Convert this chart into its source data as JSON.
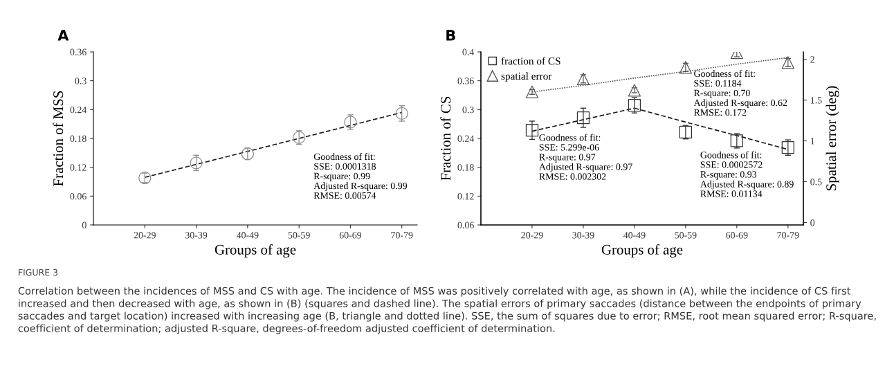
{
  "chart_data": [
    {
      "type": "scatter",
      "title": "A",
      "xlabel": "Groups of age",
      "ylabel": "Fraction of MSS",
      "categories": [
        "20-29",
        "30-39",
        "40-49",
        "50-59",
        "60-69",
        "70-79"
      ],
      "series": [
        {
          "color": "#8c8c8c",
          "marker": "circle",
          "values": [
            0.098,
            0.129,
            0.148,
            0.182,
            0.214,
            0.232
          ],
          "errors": [
            0.01,
            0.016,
            0.012,
            0.014,
            0.015,
            0.016
          ]
        },
        {
          "type": "line",
          "color": "#1a1a1a",
          "line_style": "dashed",
          "values": [
            0.099,
            0.126,
            0.153,
            0.18,
            0.207,
            0.234
          ]
        }
      ],
      "ylim": [
        0,
        0.36
      ],
      "yticks": [
        0,
        0.06,
        0.12,
        0.18,
        0.24,
        0.3,
        0.36
      ],
      "annotations": [
        "Goodness of fit:\nSSE: 0.0001318\nR-square: 0.99\nAdjusted R-square: 0.99\nRMSE: 0.00574"
      ]
    },
    {
      "type": "scatter",
      "title": "B",
      "xlabel": "Groups of age",
      "ylabel": "Fraction of CS",
      "y2label": "Spatial error (deg)",
      "categories": [
        "20-29",
        "30-39",
        "40-49",
        "50-59",
        "60-69",
        "70-79"
      ],
      "series": [
        {
          "name": "fraction of CS",
          "color": "#333333",
          "marker": "square",
          "values": [
            0.257,
            0.283,
            0.309,
            0.253,
            0.235,
            0.221
          ],
          "errors": [
            0.019,
            0.02,
            0.016,
            0.014,
            0.015,
            0.016
          ]
        },
        {
          "name": "spatial error",
          "axis": "y2",
          "color": "#555555",
          "marker": "triangle",
          "values": [
            1.6,
            1.76,
            1.62,
            1.9,
            2.08,
            1.96
          ],
          "errors": [
            0.03,
            0.05,
            0.03,
            0.05,
            0.05,
            0.05
          ]
        },
        {
          "type": "line",
          "color": "#1a1a1a",
          "line_style": "dashed",
          "values": [
            0.255,
            0.279,
            0.303,
            null,
            null,
            null
          ]
        },
        {
          "type": "line",
          "color": "#1a1a1a",
          "line_style": "dashed",
          "values": [
            null,
            null,
            0.303,
            0.274,
            0.246,
            0.217
          ]
        },
        {
          "type": "line",
          "axis": "y2",
          "color": "#555555",
          "line_style": "dotted",
          "values": [
            1.6,
            1.68,
            1.77,
            1.85,
            1.94,
            2.02
          ]
        }
      ],
      "ylim": [
        0.06,
        0.42
      ],
      "yticks": [
        0.06,
        0.12,
        0.18,
        0.24,
        0.3,
        0.36,
        {
          "value": 0.42,
          "label": "0.4"
        }
      ],
      "y2lim": [
        -0.03,
        2.09
      ],
      "y2ticks": [
        0,
        0.5,
        1,
        1.5,
        2
      ],
      "legend": "top left",
      "annotations": [
        "Goodness of fit:\nSSE: 5.299e-06\nR-square: 0.97\nAdjusted R-square: 0.97\nRMSE: 0.002302",
        "Goodness of fit:\nSSE: 0.1184\nR-square: 0.70\nAdjusted R-square: 0.62\nRMSE: 0.172",
        "Goodness of fit:\nSSE: 0.0002572\nR-square: 0.93\nAdjusted R-square: 0.89\nRMSE: 0.01134",
        "FIGURE 3",
        "Correlation between the incidences of MSS and CS with age. The incidence of MSS was positively correlated with age, as shown in (A), while the incidence of CS first increased and then decreased with age, as shown in (B) (squares and dashed line). The spatial errors of primary saccades (distance between the endpoints of primary saccades and target location) increased with increasing age (B, triangle and dotted line). SSE, the sum of squares due to error; RMSE, root mean squared error; R-square, coefficient of determination; adjusted R-square, degrees-of-freedom adjusted coefficient of determination."
      ]
    }
  ]
}
